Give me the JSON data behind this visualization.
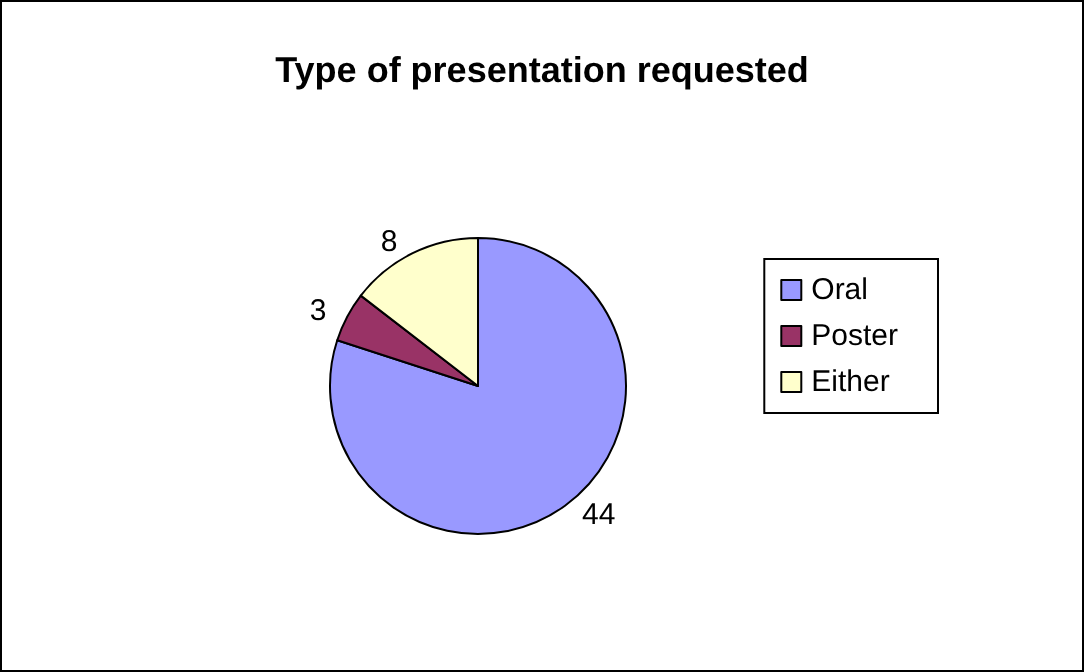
{
  "chart_data": {
    "type": "pie",
    "title": "Type of presentation requested",
    "categories": [
      "Oral",
      "Poster",
      "Either"
    ],
    "values": [
      44,
      3,
      8
    ],
    "colors": [
      "#9999ff",
      "#993366",
      "#ffffcc"
    ],
    "data_labels": true,
    "legend": "right"
  }
}
